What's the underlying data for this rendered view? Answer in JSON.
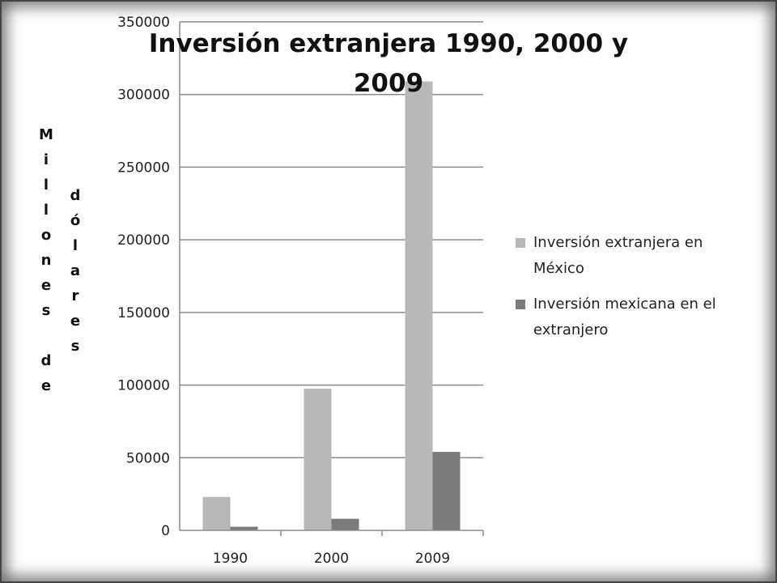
{
  "chart_data": {
    "type": "bar",
    "title_lines": [
      "Inversión extranjera 1990, 2000 y",
      "2009"
    ],
    "ylabel_columns": [
      "Millones de",
      "dólares"
    ],
    "xlabel": "",
    "categories": [
      "1990",
      "2000",
      "2009"
    ],
    "series": [
      {
        "name": "Inversión extranjera en México",
        "legend_lines": [
          "Inversión extranjera en",
          "México"
        ],
        "values": [
          23000,
          97500,
          309000
        ],
        "color": "#b8b8b8"
      },
      {
        "name": "Inversión mexicana en el extranjero",
        "legend_lines": [
          "Inversión mexicana en el",
          "extranjero"
        ],
        "values": [
          2500,
          8000,
          54000
        ],
        "color": "#7a7a7a"
      }
    ],
    "ylim": [
      0,
      350000
    ],
    "yticks": [
      "0",
      "50000",
      "100000",
      "150000",
      "200000",
      "250000",
      "300000",
      "350000"
    ],
    "grid": true,
    "legend_position": "right"
  }
}
